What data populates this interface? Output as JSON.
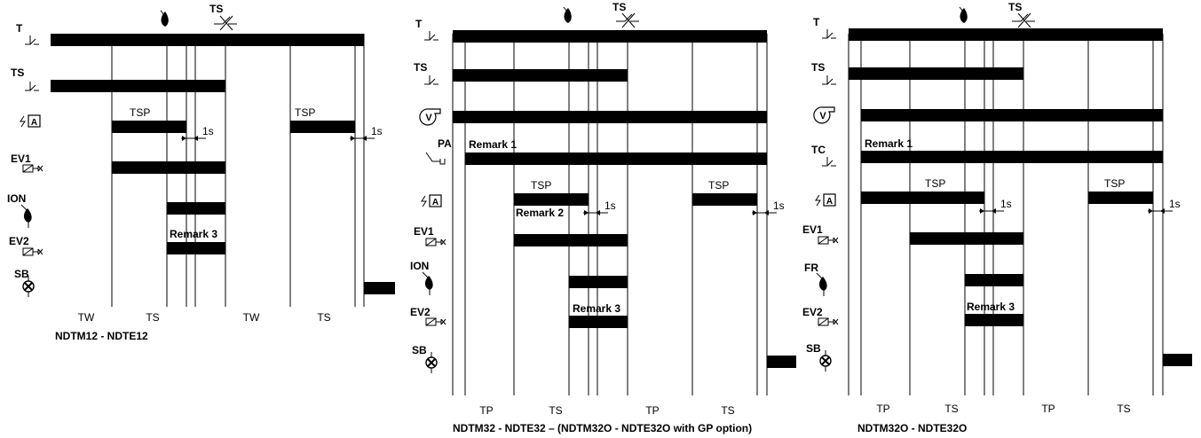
{
  "diagrams": [
    {
      "id": "d1",
      "caption": "NDTM12 - NDTE12",
      "rows": [
        {
          "label": "T",
          "icon": "thermostat-icon"
        },
        {
          "label": "TS",
          "icon": "thermostat-icon"
        },
        {
          "label": "",
          "icon": "ignition-transformer-icon",
          "icon_text": "A"
        },
        {
          "label": "EV1",
          "icon": "solenoid-valve-icon"
        },
        {
          "label": "ION",
          "icon": "flame-probe-icon"
        },
        {
          "label": "EV2",
          "icon": "solenoid-valve-icon"
        },
        {
          "label": "SB",
          "icon": "lockout-lamp-icon"
        }
      ],
      "top_markers": {
        "flame": "flame-icon",
        "ts_label": "TS",
        "ts_icon": "thermostat-open-icon"
      },
      "annotations": [
        "TSP",
        "TSP",
        "1s",
        "1s",
        "Remark 3"
      ],
      "phases": [
        "TW",
        "TS",
        "TW",
        "TS"
      ]
    },
    {
      "id": "d2",
      "caption": "NDTM32 - NDTE32 – (NDTM32O - NDTE32O with GP option)",
      "rows": [
        {
          "label": "T",
          "icon": "thermostat-icon"
        },
        {
          "label": "TS",
          "icon": "thermostat-icon"
        },
        {
          "label": "V",
          "icon": "fan-icon"
        },
        {
          "label": "PA",
          "icon": "air-pressure-switch-icon"
        },
        {
          "label": "",
          "icon": "ignition-transformer-icon",
          "icon_text": "A"
        },
        {
          "label": "EV1",
          "icon": "solenoid-valve-icon"
        },
        {
          "label": "ION",
          "icon": "flame-probe-icon"
        },
        {
          "label": "EV2",
          "icon": "solenoid-valve-icon"
        },
        {
          "label": "SB",
          "icon": "lockout-lamp-icon"
        }
      ],
      "top_markers": {
        "flame": "flame-icon",
        "ts_label": "TS",
        "ts_icon": "thermostat-open-icon"
      },
      "annotations": [
        "Remark 1",
        "TSP",
        "TSP",
        "Remark 2",
        "1s",
        "1s",
        "Remark 3"
      ],
      "phases": [
        "TP",
        "TS",
        "TP",
        "TS"
      ]
    },
    {
      "id": "d3",
      "caption": "NDTM32O - NDTE32O",
      "rows": [
        {
          "label": "T",
          "icon": "thermostat-icon"
        },
        {
          "label": "TS",
          "icon": "thermostat-icon"
        },
        {
          "label": "V",
          "icon": "fan-icon"
        },
        {
          "label": "TC",
          "icon": "thermostat-icon"
        },
        {
          "label": "",
          "icon": "ignition-transformer-icon",
          "icon_text": "A"
        },
        {
          "label": "EV1",
          "icon": "solenoid-valve-icon"
        },
        {
          "label": "FR",
          "icon": "flame-sensor-icon"
        },
        {
          "label": "EV2",
          "icon": "solenoid-valve-icon"
        },
        {
          "label": "SB",
          "icon": "lockout-lamp-icon"
        }
      ],
      "top_markers": {
        "flame": "flame-icon",
        "ts_label": "TS",
        "ts_icon": "thermostat-open-icon"
      },
      "annotations": [
        "Remark 1",
        "TSP",
        "TSP",
        "1s",
        "1s",
        "Remark 3"
      ],
      "phases": [
        "TP",
        "TS",
        "TP",
        "TS"
      ]
    }
  ]
}
